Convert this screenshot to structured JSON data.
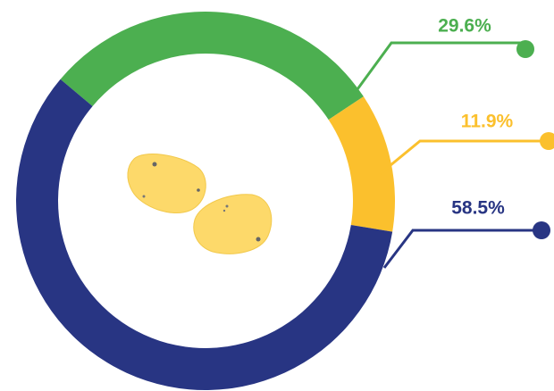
{
  "chart_data": {
    "type": "donut",
    "values": [
      29.6,
      11.9,
      58.5
    ],
    "value_labels": [
      "29.6%",
      "11.9%",
      "58.5%"
    ],
    "colors": [
      "#4caf50",
      "#fbc02d",
      "#283583"
    ]
  }
}
